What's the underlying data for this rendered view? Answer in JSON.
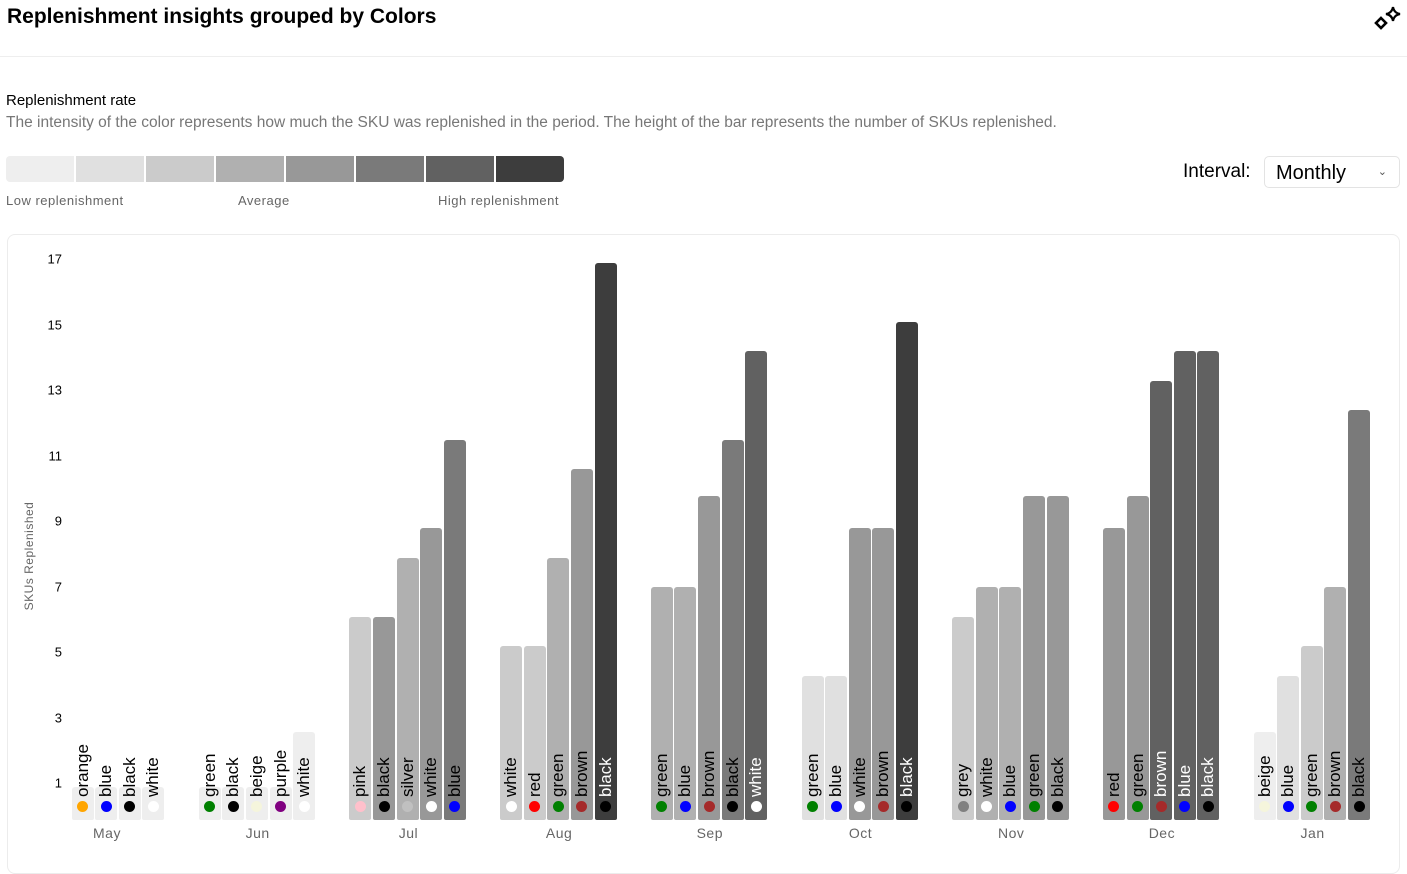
{
  "header": {
    "title": "Replenishment insights grouped by Colors",
    "action_icon": "sparkle-icon"
  },
  "section": {
    "title": "Replenishment rate",
    "description": "The intensity of the color represents how much the SKU was replenished in the period. The height of the bar represents the number of SKUs replenished."
  },
  "legend": {
    "shades": [
      "#eeeeee",
      "#e0e0e0",
      "#cbcbcb",
      "#b0b0b0",
      "#989898",
      "#7a7a7a",
      "#616161",
      "#3d3d3d"
    ],
    "low": "Low replenishment",
    "average": "Average",
    "high": "High replenishment"
  },
  "interval": {
    "label": "Interval:",
    "value": "Monthly"
  },
  "chart_data": {
    "type": "bar",
    "ylabel": "SKUs Replenished",
    "ylim": [
      0,
      17
    ],
    "yticks": [
      1,
      3,
      5,
      7,
      9,
      11,
      13,
      15,
      17
    ],
    "swatches": {
      "orange": "#ffa500",
      "blue": "#0000ff",
      "black": "#000000",
      "white": "#ffffff",
      "green": "#008000",
      "beige": "#f5f5dc",
      "purple": "#800080",
      "pink": "#ffc0cb",
      "silver": "#c0c0c0",
      "red": "#ff0000",
      "brown": "#a52a2a",
      "grey": "#808080"
    },
    "groups": [
      {
        "month": "May",
        "bars": [
          {
            "color": "orange",
            "value": 1,
            "intensity": 0
          },
          {
            "color": "blue",
            "value": 1,
            "intensity": 0
          },
          {
            "color": "black",
            "value": 1,
            "intensity": 0
          },
          {
            "color": "white",
            "value": 1,
            "intensity": 0
          }
        ]
      },
      {
        "month": "Jun",
        "bars": [
          {
            "color": "green",
            "value": 1,
            "intensity": 0
          },
          {
            "color": "black",
            "value": 1,
            "intensity": 0
          },
          {
            "color": "beige",
            "value": 1,
            "intensity": 0
          },
          {
            "color": "purple",
            "value": 1,
            "intensity": 0
          },
          {
            "color": "white",
            "value": 2.7,
            "intensity": 0
          }
        ]
      },
      {
        "month": "Jul",
        "bars": [
          {
            "color": "pink",
            "value": 6.2,
            "intensity": 2
          },
          {
            "color": "black",
            "value": 6.2,
            "intensity": 4
          },
          {
            "color": "silver",
            "value": 8,
            "intensity": 3
          },
          {
            "color": "white",
            "value": 8.9,
            "intensity": 4
          },
          {
            "color": "blue",
            "value": 11.6,
            "intensity": 5
          }
        ]
      },
      {
        "month": "Aug",
        "bars": [
          {
            "color": "white",
            "value": 5.3,
            "intensity": 2
          },
          {
            "color": "red",
            "value": 5.3,
            "intensity": 2
          },
          {
            "color": "green",
            "value": 8,
            "intensity": 3
          },
          {
            "color": "brown",
            "value": 10.7,
            "intensity": 4
          },
          {
            "color": "black",
            "value": 17,
            "intensity": 7
          }
        ]
      },
      {
        "month": "Sep",
        "bars": [
          {
            "color": "green",
            "value": 7.1,
            "intensity": 3
          },
          {
            "color": "blue",
            "value": 7.1,
            "intensity": 3
          },
          {
            "color": "brown",
            "value": 9.9,
            "intensity": 4
          },
          {
            "color": "black",
            "value": 11.6,
            "intensity": 5
          },
          {
            "color": "white",
            "value": 14.3,
            "intensity": 6
          }
        ]
      },
      {
        "month": "Oct",
        "bars": [
          {
            "color": "green",
            "value": 4.4,
            "intensity": 1
          },
          {
            "color": "blue",
            "value": 4.4,
            "intensity": 1
          },
          {
            "color": "white",
            "value": 8.9,
            "intensity": 4
          },
          {
            "color": "brown",
            "value": 8.9,
            "intensity": 4
          },
          {
            "color": "black",
            "value": 15.2,
            "intensity": 7
          }
        ]
      },
      {
        "month": "Nov",
        "bars": [
          {
            "color": "grey",
            "value": 6.2,
            "intensity": 2
          },
          {
            "color": "white",
            "value": 7.1,
            "intensity": 3
          },
          {
            "color": "blue",
            "value": 7.1,
            "intensity": 3
          },
          {
            "color": "green",
            "value": 9.9,
            "intensity": 4
          },
          {
            "color": "black",
            "value": 9.9,
            "intensity": 4
          }
        ]
      },
      {
        "month": "Dec",
        "bars": [
          {
            "color": "red",
            "value": 8.9,
            "intensity": 4
          },
          {
            "color": "green",
            "value": 9.9,
            "intensity": 4
          },
          {
            "color": "brown",
            "value": 13.4,
            "intensity": 6
          },
          {
            "color": "blue",
            "value": 14.3,
            "intensity": 6
          },
          {
            "color": "black",
            "value": 14.3,
            "intensity": 6
          }
        ]
      },
      {
        "month": "Jan",
        "bars": [
          {
            "color": "beige",
            "value": 2.7,
            "intensity": 0
          },
          {
            "color": "blue",
            "value": 4.4,
            "intensity": 1
          },
          {
            "color": "green",
            "value": 5.3,
            "intensity": 2
          },
          {
            "color": "brown",
            "value": 7.1,
            "intensity": 3
          },
          {
            "color": "black",
            "value": 12.5,
            "intensity": 5
          }
        ]
      }
    ]
  }
}
